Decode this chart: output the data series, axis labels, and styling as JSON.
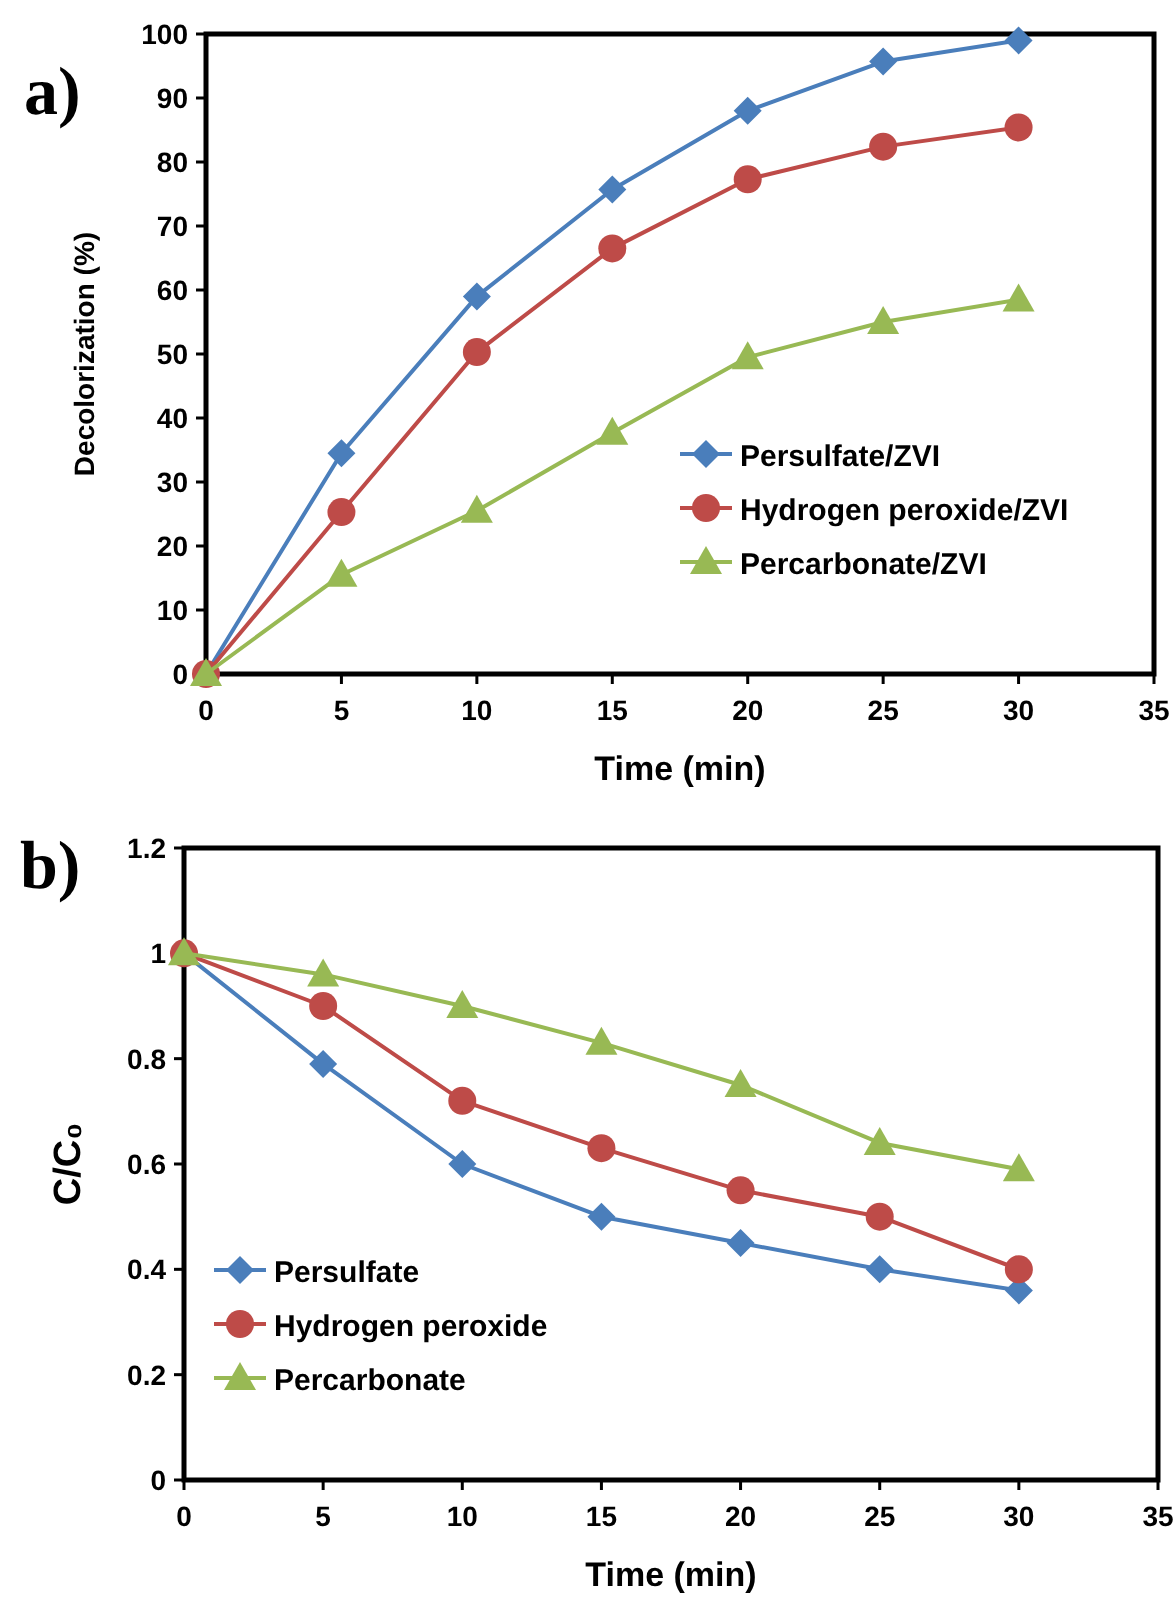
{
  "chart_data": [
    {
      "type": "line",
      "title": "a)",
      "xlabel": "Time (min)",
      "ylabel": "Decolorization (%)",
      "x": [
        0,
        5,
        10,
        15,
        20,
        25,
        30
      ],
      "xlim": [
        0,
        35
      ],
      "xticks": [
        0,
        5,
        10,
        15,
        20,
        25,
        30,
        35
      ],
      "ylim": [
        0,
        100
      ],
      "yticks": [
        0,
        10,
        20,
        30,
        40,
        50,
        60,
        70,
        80,
        90,
        100
      ],
      "grid": false,
      "legend": "bottom right",
      "series": [
        {
          "name": "Persulfate/ZVI",
          "color": "#4a7ebb",
          "marker": "diamond",
          "values": [
            0,
            34.5,
            59,
            75.7,
            88,
            95.7,
            99
          ]
        },
        {
          "name": "Hydrogen peroxide/ZVI",
          "color": "#be4b48",
          "marker": "circle",
          "values": [
            0,
            25.3,
            50.3,
            66.5,
            77.3,
            82.4,
            85.4
          ]
        },
        {
          "name": "Percarbonate/ZVI",
          "color": "#98b954",
          "marker": "triangle",
          "values": [
            0,
            15.5,
            25.5,
            37.7,
            49.5,
            55,
            58.5
          ]
        }
      ]
    },
    {
      "type": "line",
      "title": "b)",
      "xlabel": "Time (min)",
      "ylabel": "C/C₀",
      "x": [
        0,
        5,
        10,
        15,
        20,
        25,
        30
      ],
      "xlim": [
        0,
        35
      ],
      "xticks": [
        0,
        5,
        10,
        15,
        20,
        25,
        30,
        35
      ],
      "ylim": [
        0,
        1.2
      ],
      "yticks": [
        0,
        0.2,
        0.4,
        0.6,
        0.8,
        1,
        1.2
      ],
      "grid": false,
      "legend": "bottom left",
      "series": [
        {
          "name": "Persulfate",
          "color": "#4a7ebb",
          "marker": "diamond",
          "values": [
            1,
            0.79,
            0.6,
            0.5,
            0.45,
            0.4,
            0.36
          ]
        },
        {
          "name": "Hydrogen peroxide",
          "color": "#be4b48",
          "marker": "circle",
          "values": [
            1,
            0.9,
            0.72,
            0.63,
            0.55,
            0.5,
            0.4
          ]
        },
        {
          "name": "Percarbonate",
          "color": "#98b954",
          "marker": "triangle",
          "values": [
            1,
            0.96,
            0.9,
            0.83,
            0.75,
            0.64,
            0.59
          ]
        }
      ]
    }
  ]
}
